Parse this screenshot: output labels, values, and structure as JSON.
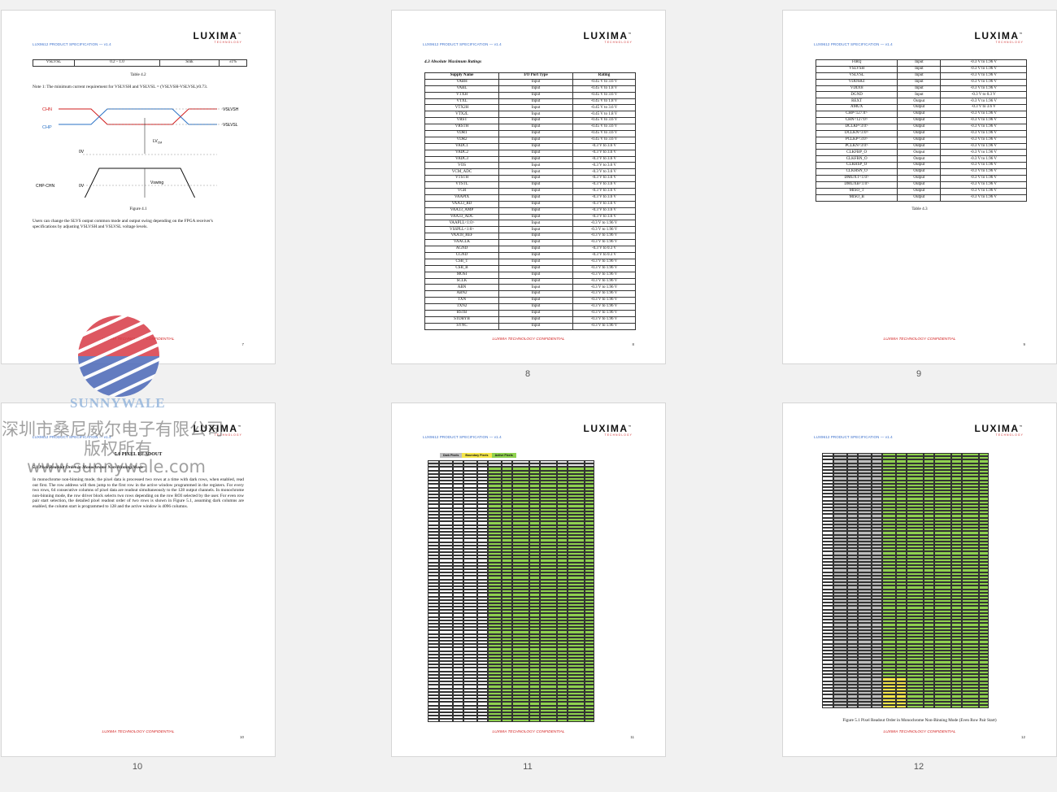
{
  "doc": {
    "header_text": "LUX9612 PRODUCT SPECIFICATION — v1.4",
    "logo_word": "LUXIMA",
    "logo_tm": "™",
    "logo_sub": "TECHNOLOGY",
    "footer_confidential": "LUXIMA TECHNOLOGY CONFIDENTIAL"
  },
  "pages": {
    "p7": {
      "footer_num": "7",
      "table_row": [
        "VSLVSL",
        "0.2 – 1.0",
        "Sink",
        "±1%"
      ],
      "table_caption": "Table 4.2",
      "note": "Note 1: The minimum current requirement for VSLVSH and VSLVSL = (VSLVSH-VSLVSL)/0.73.",
      "diagram": {
        "chn": "CHN",
        "chp": "CHP",
        "vslvsh": "VSLVSH",
        "vslvsl": "VSLVSL",
        "ov1": "0V",
        "lv": "LV",
        "lv_sub": "CM",
        "chp_chn": "CHP-CHN",
        "ov2": "0V",
        "vswing": "Vswing"
      },
      "figure_caption": "Figure 4.1",
      "paragraph": "Users can change the SLVS output common mode and output swing depending on the FPGA receiver's specifications by adjusting VSLVSH and VSLVSL voltage levels."
    },
    "p8": {
      "below_label": "8",
      "footer_num": "8",
      "section_title": "4.3 Absolute Maximum Ratings",
      "headers": [
        "Supply Name",
        "I/O Port Type",
        "Rating"
      ],
      "rows": [
        [
          "VABH",
          "Input",
          "-0.45 V to 3.6 V"
        ],
        [
          "VABL",
          "Input",
          "-0.45 V to 1.8 V"
        ],
        [
          "VTXH",
          "Input",
          "-0.45 V to 3.6 V"
        ],
        [
          "VTXL",
          "Input",
          "-0.45 V to 1.8 V"
        ],
        [
          "VTX2H",
          "Input",
          "-0.45 V to 3.6 V"
        ],
        [
          "VTX2L",
          "Input",
          "-0.45 V to 1.8 V"
        ],
        [
          "VRST",
          "Input",
          "-0.45 V to 3.6 V"
        ],
        [
          "VRSTH",
          "Input",
          "-0.45 V to 3.6 V"
        ],
        [
          "VDR1",
          "Input",
          "-0.45 V to 3.6 V"
        ],
        [
          "VDR2",
          "Input",
          "-0.45 V to 3.6 V"
        ],
        [
          "VADC1",
          "Input",
          "-0.3 V to 3.6 V"
        ],
        [
          "VADC2",
          "Input",
          "-0.3 V to 3.6 V"
        ],
        [
          "VADC3",
          "Input",
          "-0.3 V to 3.6 V"
        ],
        [
          "VOS",
          "Input",
          "-0.3 V to 3.6 V"
        ],
        [
          "VCM_ADC",
          "Input",
          "-0.3 V to 3.6 V"
        ],
        [
          "VTSTH",
          "Input",
          "-0.3 V to 3.6 V"
        ],
        [
          "VTSTL",
          "Input",
          "-0.3 V to 3.6 V"
        ],
        [
          "VGR",
          "Input",
          "-0.3 V to 3.6 V"
        ],
        [
          "VAAPIX",
          "Input",
          "-0.3 V to 3.6 V"
        ],
        [
          "VAA33_RD",
          "Input",
          "-0.3 V to 3.6 V"
        ],
        [
          "VAA33_AMP",
          "Input",
          "-0.3 V to 3.6 V"
        ],
        [
          "VAA33_ADC",
          "Input",
          "-0.3 V to 3.6 V"
        ],
        [
          "VAAPLL<1:0>",
          "Input",
          "-0.3 V to 1.96 V"
        ],
        [
          "VSSPLL<1:0>",
          "Input",
          "-0.3 V to 1.96 V"
        ],
        [
          "VAA18_REF",
          "Input",
          "-0.3 V to 1.96 V"
        ],
        [
          "VAACLK",
          "Input",
          "-0.3 V to 1.96 V"
        ],
        [
          "AGND",
          "Input",
          "-0.3 V to 0.3 V"
        ],
        [
          "CGND",
          "Input",
          "-0.3 V to 0.3 V"
        ],
        [
          "CSB_T",
          "Input",
          "-0.3 V to 1.96 V"
        ],
        [
          "CSB_B",
          "Input",
          "-0.3 V to 1.96 V"
        ],
        [
          "MOSI",
          "Input",
          "-0.3 V to 1.96 V"
        ],
        [
          "SCLK",
          "Input",
          "-0.3 V to 1.96 V"
        ],
        [
          "ABN",
          "Input",
          "-0.3 V to 1.96 V"
        ],
        [
          "ABN2",
          "Input",
          "-0.3 V to 1.96 V"
        ],
        [
          "TXN",
          "Input",
          "-0.3 V to 1.96 V"
        ],
        [
          "TXN2",
          "Input",
          "-0.3 V to 1.96 V"
        ],
        [
          "RSTB",
          "Input",
          "-0.3 V to 1.96 V"
        ],
        [
          "STDBYB",
          "Input",
          "-0.3 V to 1.96 V"
        ],
        [
          "SYNC",
          "Input",
          "-0.3 V to 1.96 V"
        ]
      ]
    },
    "p9": {
      "below_label": "9",
      "footer_num": "9",
      "rows": [
        [
          "FIRQ",
          "Input",
          "-0.3 V to 1.96 V"
        ],
        [
          "VSLVSH",
          "Input",
          "-0.3 V to 1.96 V"
        ],
        [
          "VSLVSL",
          "Input",
          "-0.3 V to 1.96 V"
        ],
        [
          "VDDSRZ",
          "Input",
          "-0.3 V to 1.96 V"
        ],
        [
          "VDD18",
          "Input",
          "-0.3 V to 1.96 V"
        ],
        [
          "DGND",
          "Input",
          "-0.3 V to 0.3 V"
        ],
        [
          "REXT",
          "Output",
          "-0.3 V to 1.96 V"
        ],
        [
          "AMUX",
          "Output",
          "-0.3 V to 3.6 V"
        ],
        [
          "CHP<127:0>",
          "Output",
          "-0.3 V to 1.96 V"
        ],
        [
          "CHN<127:0>",
          "Output",
          "-0.3 V to 1.96 V"
        ],
        [
          "DCLKP<3:0>",
          "Output",
          "-0.3 V to 1.96 V"
        ],
        [
          "DCLKN<3:0>",
          "Output",
          "-0.3 V to 1.96 V"
        ],
        [
          "PCLKP<3:0>",
          "Output",
          "-0.3 V to 1.96 V"
        ],
        [
          "PCLKN<3:0>",
          "Output",
          "-0.3 V to 1.96 V"
        ],
        [
          "CLKFBP_O",
          "Output",
          "-0.3 V to 1.96 V"
        ],
        [
          "CLKFBN_O",
          "Output",
          "-0.3 V to 1.96 V"
        ],
        [
          "CLKHSP_O",
          "Output",
          "-0.3 V to 1.96 V"
        ],
        [
          "CLKHSN_O",
          "Output",
          "-0.3 V to 1.96 V"
        ],
        [
          "DMUXT<1:0>",
          "Output",
          "-0.3 V to 1.96 V"
        ],
        [
          "DMUXB<1:0>",
          "Output",
          "-0.3 V to 1.96 V"
        ],
        [
          "MISO_T",
          "Output",
          "-0.3 V to 1.96 V"
        ],
        [
          "MISO_B",
          "Output",
          "-0.3 V to 1.96 V"
        ]
      ],
      "table_caption": "Table 4.3"
    },
    "p10": {
      "below_label": "10",
      "footer_num": "10",
      "section_title": "5.0 PIXEL READOUT",
      "subsection_title": "5.1 Pixel Readout Order in Monochrome Non-Binning Mode",
      "paragraph": "In monochrome non-binning mode, the pixel data is processed two rows at a time with dark rows, when enabled, read out first. The row address will then jump to the first row in the active window programmed in the registers. For every two rows, 64 consecutive columns of pixel data are readout simultaneously to the 128 output channels. In monochrome non-binning mode, the row driver block selects two rows depending on the row ROI selected by the user. For even row pair start selection, the detailed pixel readout order of two rows is shown in Figure 5.1, assuming dark columns are enabled, the column start is programmed to 128 and the active window is 4096 columns."
    },
    "p11": {
      "below_label": "11",
      "footer_num": "11",
      "legend": [
        "Dark Pixels",
        "Boundary Pixels",
        "Active Pixels"
      ],
      "legend_colors": [
        "#bdbdbd",
        "#f4e64a",
        "#8fd14f"
      ]
    },
    "p12": {
      "below_label": "12",
      "footer_num": "12",
      "figure_caption": "Figure 5.1 Pixel Readout Order in Monochrome Non-Binning Mode (Even Row Pair Start)"
    }
  },
  "watermark": {
    "brand": "SUNNYWALE",
    "line1": "深圳市桑尼威尔电子有限公司",
    "line2": "版权所有",
    "url": "www.sunnywale.com"
  },
  "colors": {
    "header_blue": "#3a6fcc",
    "confidential_red": "#d21c1c",
    "grid_green": "#8fd14f",
    "grid_yellow": "#f4e64a",
    "grid_gray": "#bdbdbd"
  }
}
